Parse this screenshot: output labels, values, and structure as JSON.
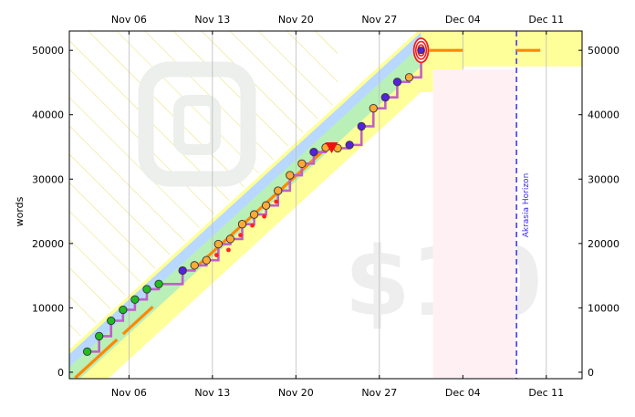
{
  "chart_data": {
    "type": "line",
    "ylabel": "words",
    "x_ticks": [
      "Nov 06",
      "Nov 13",
      "Nov 20",
      "Nov 27",
      "Dec 04",
      "Dec 11"
    ],
    "x_tick_days": [
      6,
      13,
      20,
      27,
      34,
      41
    ],
    "xlim": [
      1,
      44
    ],
    "ylim": [
      -1000,
      53000
    ],
    "y_ticks": [
      0,
      10000,
      20000,
      30000,
      40000,
      50000
    ],
    "y_tick_labels": [
      "0",
      "10000",
      "20000",
      "30000",
      "40000",
      "50000"
    ],
    "watermarks": [
      "$10"
    ],
    "horizon": {
      "label": "Akrasia Horizon",
      "day": 38.5
    },
    "goal": {
      "day": 30.5,
      "value": 50000
    },
    "road": {
      "x": [
        1,
        30.5,
        40
      ],
      "y": [
        0,
        50000,
        50000
      ]
    },
    "series": [
      {
        "values": [
          [
            2.5,
            3200
          ],
          [
            3.5,
            5600
          ],
          [
            4.5,
            8000
          ],
          [
            5.5,
            9700
          ],
          [
            6.5,
            11300
          ],
          [
            7.5,
            12900
          ],
          [
            8.5,
            13700
          ],
          [
            10.5,
            15800
          ],
          [
            11.5,
            16600
          ],
          [
            12.5,
            17400
          ],
          [
            13.5,
            19900
          ],
          [
            14.5,
            20700
          ],
          [
            15.5,
            23000
          ],
          [
            16.5,
            24500
          ],
          [
            17.5,
            25900
          ],
          [
            18.5,
            28200
          ],
          [
            19.5,
            30600
          ],
          [
            20.5,
            32400
          ],
          [
            21.5,
            34200
          ],
          [
            22.5,
            34900
          ],
          [
            23.5,
            34800
          ],
          [
            24.5,
            35300
          ],
          [
            25.5,
            38200
          ],
          [
            26.5,
            41000
          ],
          [
            27.5,
            42700
          ],
          [
            28.5,
            45100
          ],
          [
            29.5,
            45800
          ],
          [
            30.5,
            50000
          ]
        ]
      }
    ]
  }
}
